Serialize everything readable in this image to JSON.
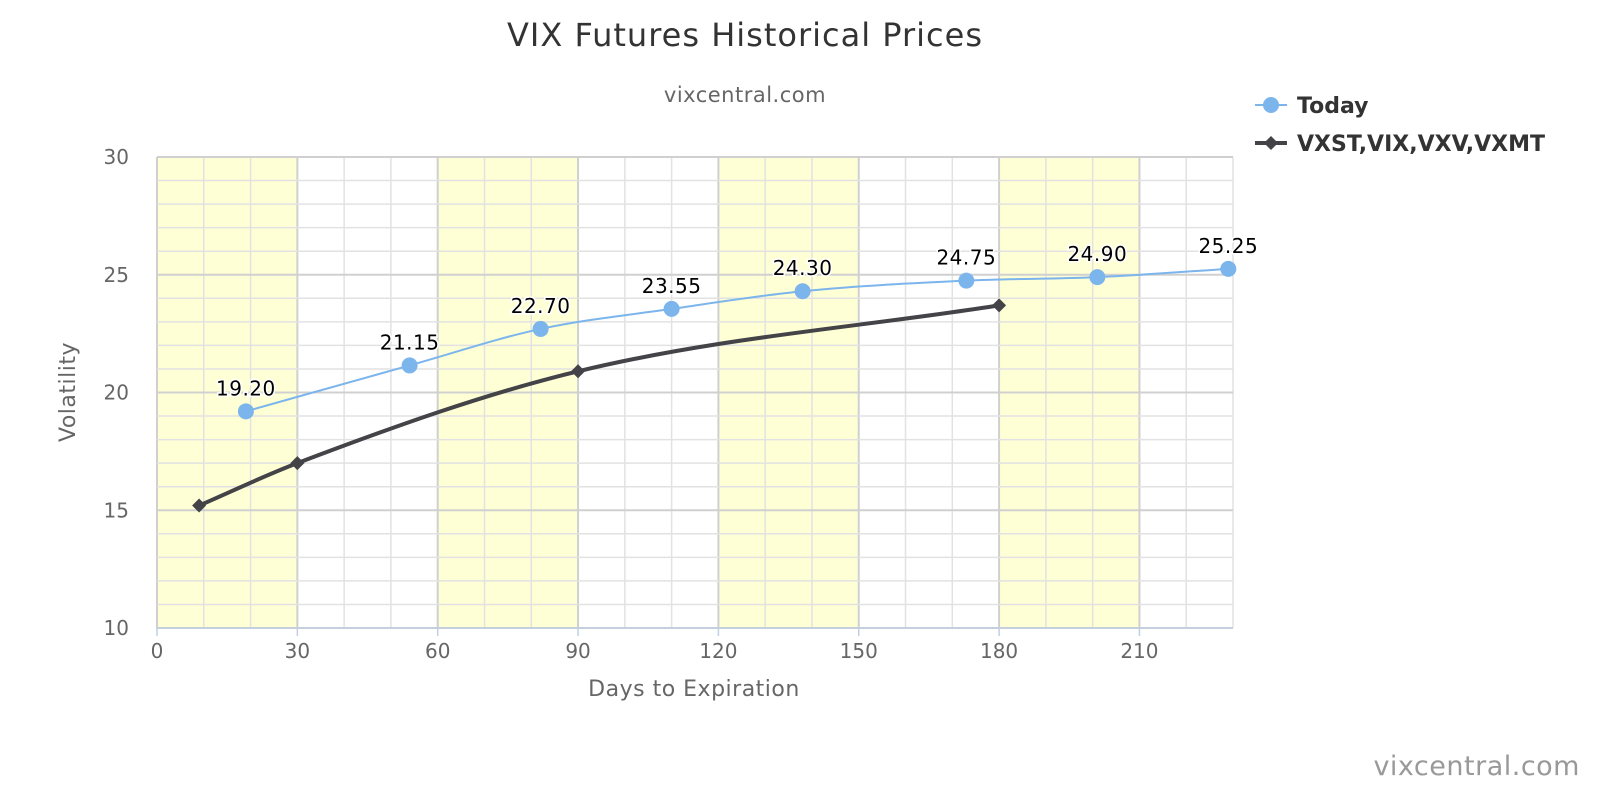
{
  "chart_data": {
    "type": "line",
    "title": "VIX Futures Historical Prices",
    "subtitle": "vixcentral.com",
    "xlabel": "Days to Expiration",
    "ylabel": "Volatility",
    "xlim": [
      0,
      230
    ],
    "ylim": [
      10,
      30
    ],
    "x_ticks": [
      0,
      30,
      60,
      90,
      120,
      150,
      180,
      210
    ],
    "y_ticks": [
      10,
      15,
      20,
      25,
      30
    ],
    "x_minor_step": 10,
    "y_minor_step": 1,
    "shaded_bands": [
      [
        0,
        30
      ],
      [
        60,
        90
      ],
      [
        120,
        150
      ],
      [
        180,
        210
      ]
    ],
    "band_color": "#FFFFD6",
    "grid": true,
    "legend_position": "top-right",
    "series": [
      {
        "name": "Today",
        "color": "#7CB5EC",
        "marker": "circle",
        "points": [
          {
            "x": 19,
            "y": 19.2,
            "label": "19.20"
          },
          {
            "x": 54,
            "y": 21.15,
            "label": "21.15"
          },
          {
            "x": 82,
            "y": 22.7,
            "label": "22.70"
          },
          {
            "x": 110,
            "y": 23.55,
            "label": "23.55"
          },
          {
            "x": 138,
            "y": 24.3,
            "label": "24.30"
          },
          {
            "x": 173,
            "y": 24.75,
            "label": "24.75"
          },
          {
            "x": 201,
            "y": 24.9,
            "label": "24.90"
          },
          {
            "x": 229,
            "y": 25.25,
            "label": "25.25"
          }
        ]
      },
      {
        "name": "VXST,VIX,VXV,VXMT",
        "color": "#434348",
        "marker": "diamond",
        "points": [
          {
            "x": 9,
            "y": 15.2
          },
          {
            "x": 30,
            "y": 17.0
          },
          {
            "x": 90,
            "y": 20.9
          },
          {
            "x": 180,
            "y": 23.7
          }
        ]
      }
    ],
    "credits": "vixcentral.com"
  }
}
